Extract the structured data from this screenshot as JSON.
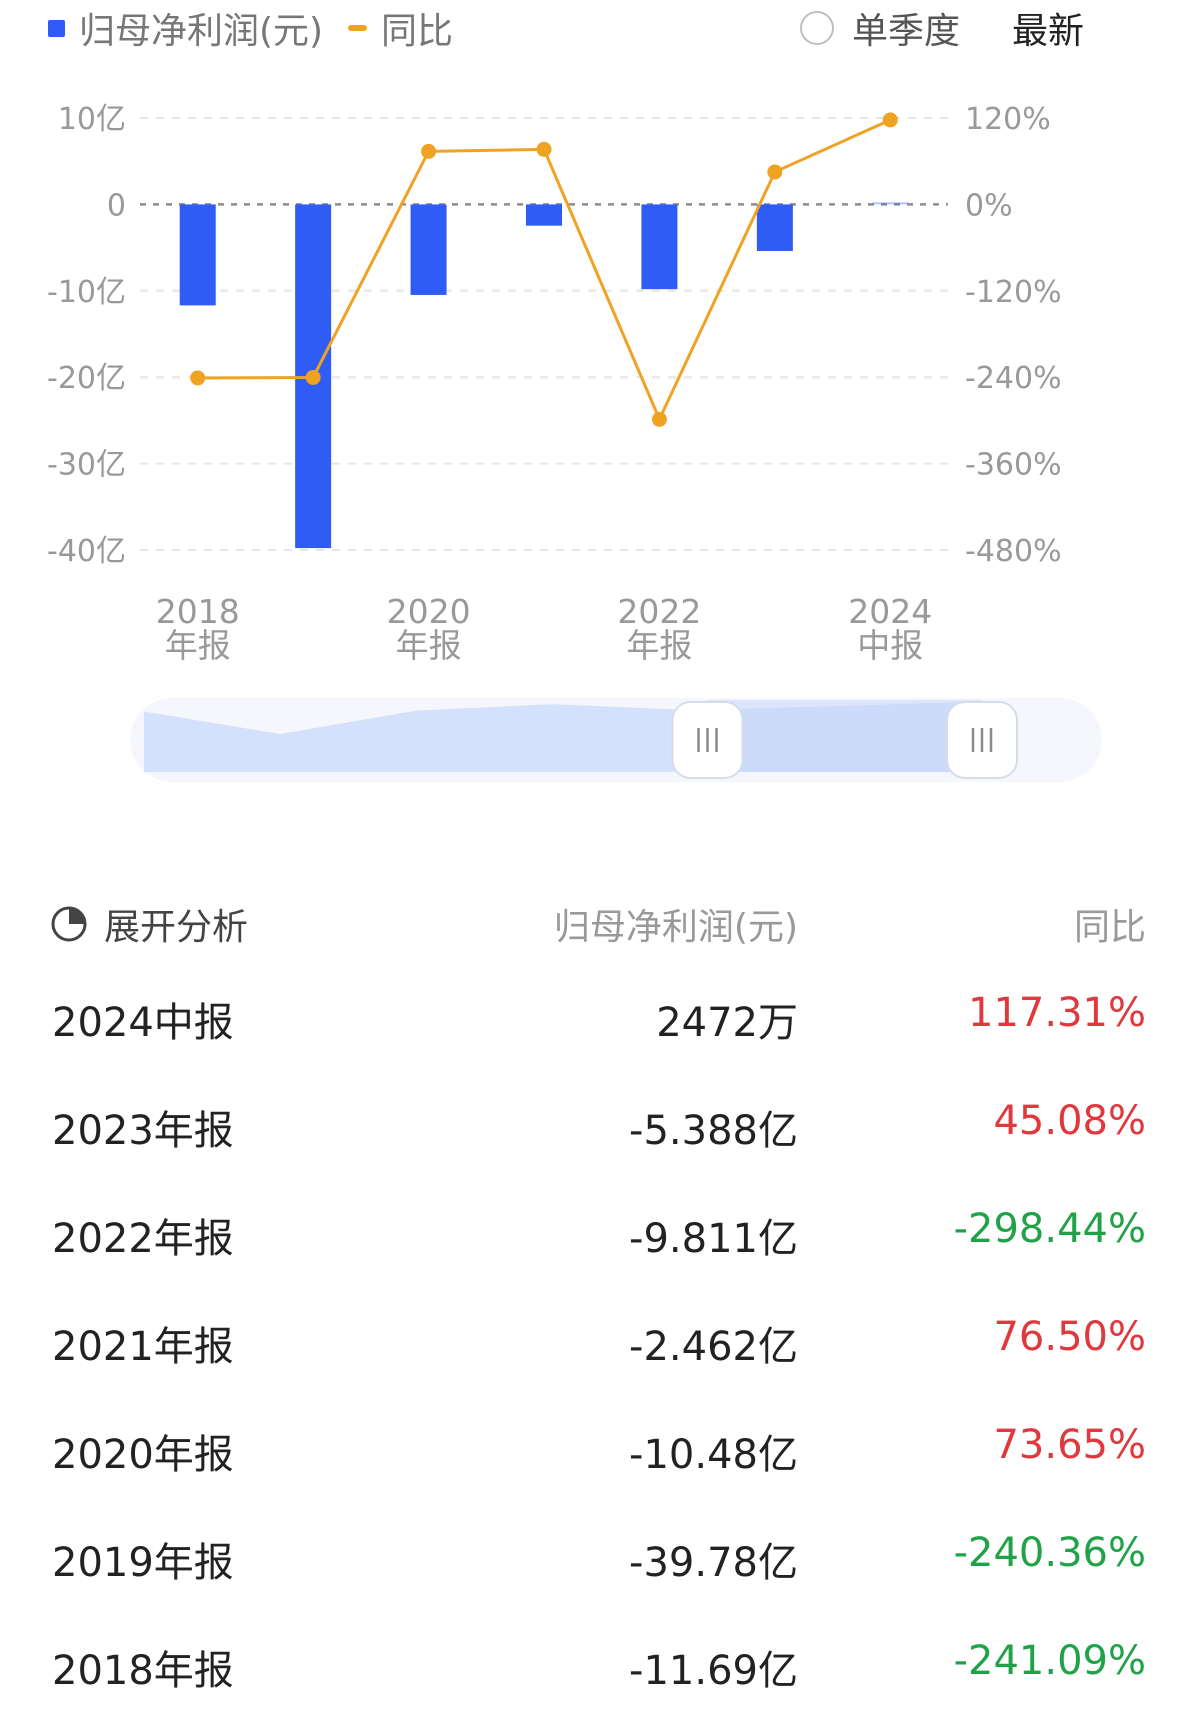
{
  "legend": {
    "bar_label": "归母净利润(元)",
    "line_label": "同比",
    "bar_color": "#2f5cf5",
    "line_color": "#f0a223"
  },
  "controls": {
    "quarterly_toggle_label": "单季度",
    "quarterly_checked": false,
    "latest_label": "最新"
  },
  "chart_data": {
    "type": "bar+line",
    "categories": [
      "2018年报",
      "2019年报",
      "2020年报",
      "2021年报",
      "2022年报",
      "2023年报",
      "2024中报"
    ],
    "x_tick_labels": [
      {
        "index": 0,
        "line1": "2018",
        "line2": "年报"
      },
      {
        "index": 2,
        "line1": "2020",
        "line2": "年报"
      },
      {
        "index": 4,
        "line1": "2022",
        "line2": "年报"
      },
      {
        "index": 6,
        "line1": "2024",
        "line2": "中报"
      }
    ],
    "series": [
      {
        "name": "归母净利润(元)",
        "type": "bar",
        "axis": "left",
        "unit": "亿",
        "values": [
          -11.69,
          -39.78,
          -10.48,
          -2.462,
          -9.811,
          -5.388,
          0.2472
        ]
      },
      {
        "name": "同比",
        "type": "line",
        "axis": "right",
        "unit": "%",
        "values": [
          -241.09,
          -240.36,
          73.65,
          76.5,
          -298.44,
          45.08,
          117.31
        ]
      }
    ],
    "y_left": {
      "min": -40,
      "max": 10,
      "ticks": [
        10,
        0,
        -10,
        -20,
        -30,
        -40
      ],
      "tick_labels": [
        "10亿",
        "0",
        "-10亿",
        "-20亿",
        "-30亿",
        "-40亿"
      ]
    },
    "y_right": {
      "min": -480,
      "max": 120,
      "ticks": [
        120,
        0,
        -120,
        -240,
        -360,
        -480
      ],
      "tick_labels": [
        "120%",
        "0%",
        "-120%",
        "-240%",
        "-360%",
        "-480%"
      ]
    },
    "grid": true,
    "legend_position": "top-left"
  },
  "slider": {
    "range_start_fraction": 0.64,
    "range_end_fraction": 1.0
  },
  "table": {
    "expand_label": "展开分析",
    "col_value_header": "归母净利润(元)",
    "col_yoy_header": "同比",
    "rows": [
      {
        "period": "2024中报",
        "value": "2472万",
        "yoy": "117.31%",
        "trend": "pos"
      },
      {
        "period": "2023年报",
        "value": "-5.388亿",
        "yoy": "45.08%",
        "trend": "pos"
      },
      {
        "period": "2022年报",
        "value": "-9.811亿",
        "yoy": "-298.44%",
        "trend": "neg"
      },
      {
        "period": "2021年报",
        "value": "-2.462亿",
        "yoy": "76.50%",
        "trend": "pos"
      },
      {
        "period": "2020年报",
        "value": "-10.48亿",
        "yoy": "73.65%",
        "trend": "pos"
      },
      {
        "period": "2019年报",
        "value": "-39.78亿",
        "yoy": "-240.36%",
        "trend": "neg"
      },
      {
        "period": "2018年报",
        "value": "-11.69亿",
        "yoy": "-241.09%",
        "trend": "neg"
      }
    ],
    "pos_color": "#e0383c",
    "neg_color": "#20a348"
  }
}
